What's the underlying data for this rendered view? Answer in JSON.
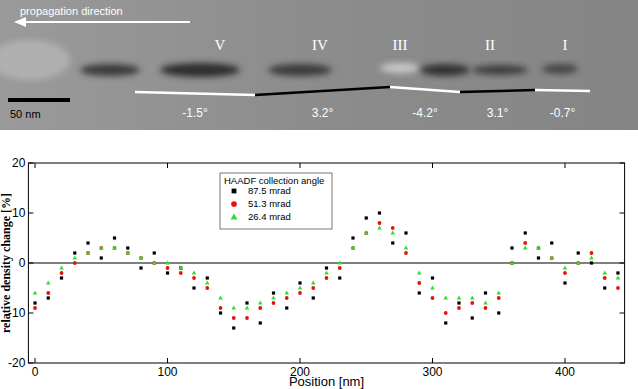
{
  "image": {
    "arrow_label": "propagation direction",
    "scale_bar": "50 nm",
    "segments": [
      {
        "label": "V",
        "angle": "-1.5°"
      },
      {
        "label": "IV",
        "angle": "3.2°"
      },
      {
        "label": "III",
        "angle": "-4.2°"
      },
      {
        "label": "II",
        "angle": "3.1°"
      },
      {
        "label": "I",
        "angle": "-0.7°"
      }
    ]
  },
  "chart_data": {
    "type": "scatter",
    "x_label": "Position [nm]",
    "y_label": "relative density change [%]",
    "legend_title": "HAADF collection angle",
    "legend": "top",
    "xlim": [
      -5,
      445
    ],
    "xticks": [
      0,
      100,
      200,
      300,
      400
    ],
    "ylim": [
      -20,
      20
    ],
    "yticks": [
      -20,
      -10,
      0,
      10,
      20
    ],
    "reference_line": 0,
    "x": [
      0,
      10,
      20,
      30,
      40,
      50,
      60,
      70,
      80,
      90,
      100,
      110,
      120,
      130,
      140,
      150,
      160,
      170,
      180,
      190,
      200,
      210,
      220,
      230,
      240,
      250,
      260,
      270,
      280,
      290,
      300,
      310,
      320,
      330,
      340,
      350,
      360,
      370,
      380,
      390,
      400,
      410,
      420,
      430,
      440
    ],
    "series": [
      {
        "name": "87.5 mrad",
        "color": "#000000",
        "marker": "square",
        "values": [
          -8,
          -7,
          -3,
          2,
          4,
          1,
          5,
          3,
          -1,
          2,
          -2,
          -1,
          -5,
          -3,
          -10,
          -13,
          -8,
          -12,
          -6,
          -9,
          -4,
          -7,
          -1,
          -3,
          5,
          9,
          10,
          4,
          6,
          -6,
          -3,
          -12,
          -8,
          -11,
          -6,
          -10,
          3,
          6,
          1,
          4,
          -4,
          2,
          0,
          -5,
          -2
        ]
      },
      {
        "name": "51.3 mrad",
        "color": "#e8120c",
        "marker": "circle",
        "values": [
          -9,
          -6,
          -2,
          0,
          2,
          3,
          3,
          2,
          1,
          0,
          -1,
          -2,
          -3,
          -5,
          -9,
          -11,
          -11,
          -9,
          -8,
          -7,
          -6,
          -5,
          -3,
          -1,
          3,
          6,
          8,
          7,
          2,
          -4,
          -7,
          -10,
          -9,
          -8,
          -9,
          -7,
          0,
          4,
          3,
          1,
          -2,
          0,
          2,
          -3,
          -5
        ]
      },
      {
        "name": "26.4 mrad",
        "color": "#33dd33",
        "marker": "triangle",
        "values": [
          -6,
          -4,
          -1,
          1,
          2,
          3,
          3,
          2,
          1,
          0,
          0,
          -1,
          -2,
          -4,
          -7,
          -9,
          -9,
          -8,
          -7,
          -6,
          -5,
          -4,
          -2,
          0,
          3,
          6,
          7,
          6,
          3,
          -2,
          -5,
          -7,
          -7,
          -7,
          -8,
          -6,
          0,
          3,
          3,
          1,
          -1,
          0,
          1,
          -2,
          -3
        ]
      }
    ]
  }
}
